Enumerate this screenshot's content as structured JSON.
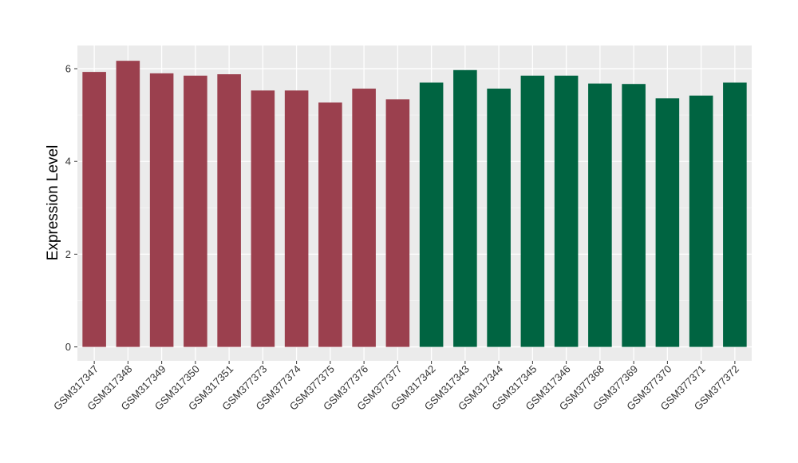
{
  "chart_data": {
    "type": "bar",
    "xlabel": "",
    "ylabel": "Expression Level",
    "ylim": [
      -0.3,
      6.5
    ],
    "yticks": [
      0,
      2,
      4,
      6
    ],
    "grid": true,
    "legend": "none",
    "categories": [
      "GSM317347",
      "GSM317348",
      "GSM317349",
      "GSM317350",
      "GSM317351",
      "GSM377373",
      "GSM377374",
      "GSM377375",
      "GSM377376",
      "GSM377377",
      "GSM317342",
      "GSM317343",
      "GSM317344",
      "GSM317345",
      "GSM317346",
      "GSM377368",
      "GSM377369",
      "GSM377370",
      "GSM377371",
      "GSM377372"
    ],
    "values": [
      5.93,
      6.17,
      5.9,
      5.85,
      5.88,
      5.53,
      5.53,
      5.27,
      5.57,
      5.34,
      5.7,
      5.97,
      5.57,
      5.85,
      5.85,
      5.68,
      5.67,
      5.36,
      5.42,
      5.7
    ],
    "bar_colors": [
      "#9b404e",
      "#9b404e",
      "#9b404e",
      "#9b404e",
      "#9b404e",
      "#9b404e",
      "#9b404e",
      "#9b404e",
      "#9b404e",
      "#9b404e",
      "#006441",
      "#006441",
      "#006441",
      "#006441",
      "#006441",
      "#006441",
      "#006441",
      "#006441",
      "#006441",
      "#006441"
    ]
  },
  "colors": {
    "panel_background": "#ebebeb",
    "grid_major": "#ffffff",
    "grid_minor": "#f5f5f5",
    "group_a": "#9b404e",
    "group_b": "#006441"
  }
}
